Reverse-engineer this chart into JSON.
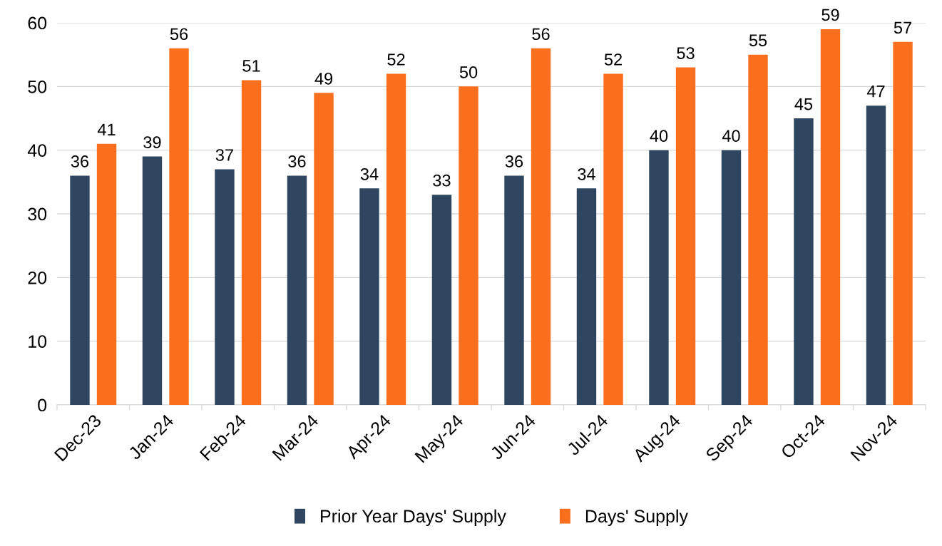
{
  "chart_data": {
    "type": "bar",
    "categories": [
      "Dec-23",
      "Jan-24",
      "Feb-24",
      "Mar-24",
      "Apr-24",
      "May-24",
      "Jun-24",
      "Jul-24",
      "Aug-24",
      "Sep-24",
      "Oct-24",
      "Nov-24"
    ],
    "series": [
      {
        "name": "Prior Year Days' Supply",
        "color": "#2e4660",
        "values": [
          36,
          39,
          37,
          36,
          34,
          33,
          36,
          34,
          40,
          40,
          45,
          47
        ]
      },
      {
        "name": "Days' Supply",
        "color": "#f96f1e",
        "values": [
          41,
          56,
          51,
          49,
          52,
          50,
          56,
          52,
          53,
          55,
          59,
          57
        ]
      }
    ],
    "ylim": [
      0,
      60
    ],
    "yticks": [
      0,
      10,
      20,
      30,
      40,
      50,
      60
    ],
    "grid": "y",
    "legend": "bottom",
    "data_labels": true
  }
}
